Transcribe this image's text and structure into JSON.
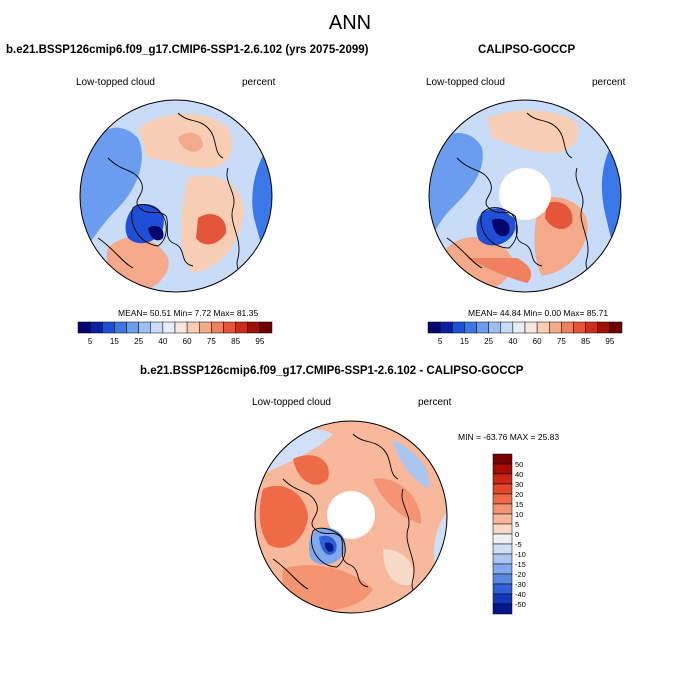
{
  "title": "ANN",
  "panels": {
    "model": {
      "title": "b.e21.BSSP126cmip6.f09_g17.CMIP6-SSP1-2.6.102 (yrs 2075-2099)",
      "left_label": "Low-topped cloud",
      "right_label": "percent",
      "stats": "MEAN=  50.51  Min=    7.72  Max=  81.35"
    },
    "obs": {
      "title": "CALIPSO-GOCCP",
      "left_label": "Low-topped cloud",
      "right_label": "percent",
      "stats": "MEAN=  44.84  Min=    0.00  Max=  85.71"
    },
    "diff": {
      "title": "b.e21.BSSP126cmip6.f09_g17.CMIP6-SSP1-2.6.102 - CALIPSO-GOCCP",
      "left_label": "Low-topped cloud",
      "right_label": "percent",
      "stats": "MIN = -63.76 MAX =  25.83"
    }
  },
  "colorbar_abs": {
    "ticks": [
      "5",
      "15",
      "25",
      "40",
      "60",
      "75",
      "85",
      "95"
    ],
    "colors": [
      "#04046e",
      "#0b1fa8",
      "#1f4fd6",
      "#3a78e8",
      "#6a9cf0",
      "#9cc0f5",
      "#c8dbf7",
      "#e8eef8",
      "#f6e6dc",
      "#f7cdb3",
      "#f4a98a",
      "#ef8060",
      "#e4553a",
      "#c92d1c",
      "#9c1208",
      "#6c0200"
    ]
  },
  "colorbar_diff": {
    "ticks": [
      "50",
      "40",
      "30",
      "20",
      "15",
      "10",
      "5",
      "0",
      "-5",
      "-10",
      "-15",
      "-20",
      "-30",
      "-40",
      "-50"
    ],
    "colors": [
      "#7a0000",
      "#a50d05",
      "#cc2613",
      "#e4462a",
      "#ef6b48",
      "#f49472",
      "#f8b89c",
      "#f9d9c8",
      "#eef0f6",
      "#cfdff5",
      "#a9c6f1",
      "#80a8ec",
      "#5887e4",
      "#2f60d6",
      "#1237b8",
      "#04168c"
    ]
  },
  "map_colors": {
    "ocean_blue": "#6b9ce8",
    "deep_blue": "#1f4fd6",
    "light_blue": "#c8dbf7",
    "peach": "#f7cdb3",
    "salmon": "#f4a98a",
    "orange": "#ef8060",
    "red": "#e4553a",
    "white": "#ffffff"
  }
}
